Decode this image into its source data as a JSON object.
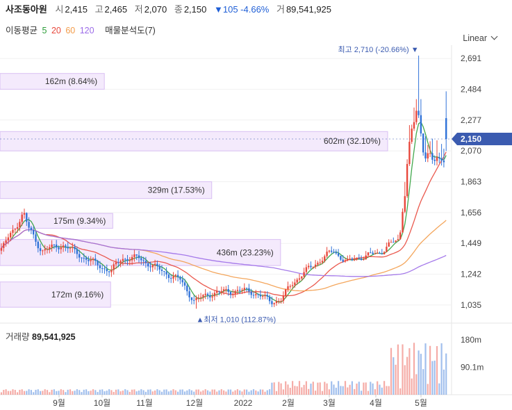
{
  "header": {
    "name": "사조동아원",
    "open_label": "시",
    "open": "2,415",
    "high_label": "고",
    "high": "2,465",
    "low_label": "저",
    "low": "2,070",
    "close_label": "종",
    "close": "2,150",
    "change": "▼105 -4.66%",
    "volume_label": "거",
    "volume": "89,541,925"
  },
  "indicators": {
    "ma_label": "이동평균",
    "ma_periods": [
      {
        "label": "5",
        "color": "#2e9e3a"
      },
      {
        "label": "20",
        "color": "#e8473b"
      },
      {
        "label": "60",
        "color": "#f39c4a"
      },
      {
        "label": "120",
        "color": "#9b6be8"
      }
    ],
    "vp_label": "매물분석도(7)"
  },
  "scale_mode": "Linear",
  "volume_panel": {
    "title": "거래량",
    "value": "89,541,925"
  },
  "chart_data": {
    "type": "candlestick",
    "y_ticks": [
      "2,691",
      "2,484",
      "2,277",
      "2,070",
      "1,863",
      "1,656",
      "1,449",
      "1,242",
      "1,035"
    ],
    "y_tick_values": [
      2691,
      2484,
      2277,
      2070,
      1863,
      1656,
      1449,
      1242,
      1035
    ],
    "x_ticks": [
      "9월",
      "10월",
      "11월",
      "12월",
      "2022",
      "2월",
      "3월",
      "4월",
      "5월"
    ],
    "current_price": "2,150",
    "current_value": 2150,
    "high_annotation": "최고 2,710 (-20.66%)",
    "high_value": 2710,
    "low_annotation": "최저 1,010 (112.87%)",
    "low_value": 1010,
    "volume_profile": [
      {
        "label": "162m (8.64%)",
        "price_from": 2484,
        "price_to": 2590,
        "pct": 8.64
      },
      {
        "label": "602m (32.10%)",
        "price_from": 2070,
        "price_to": 2200,
        "pct": 32.1
      },
      {
        "label": "329m (17.53%)",
        "price_from": 1750,
        "price_to": 1863,
        "pct": 17.53
      },
      {
        "label": "175m (9.34%)",
        "price_from": 1550,
        "price_to": 1650,
        "pct": 9.34
      },
      {
        "label": "436m (23.23%)",
        "price_from": 1300,
        "price_to": 1475,
        "pct": 23.23
      },
      {
        "label": "172m (9.16%)",
        "price_from": 1020,
        "price_to": 1190,
        "pct": 9.16
      }
    ],
    "volume_ticks": [
      "180m",
      "90.1m"
    ],
    "volume_tick_values": [
      180,
      90.1
    ],
    "colors": {
      "up": "#e8473b",
      "down": "#2f72d8",
      "profile_fill": "#f4eafc",
      "profile_edge": "#d9bff3",
      "current": "#3b5bb0"
    }
  }
}
